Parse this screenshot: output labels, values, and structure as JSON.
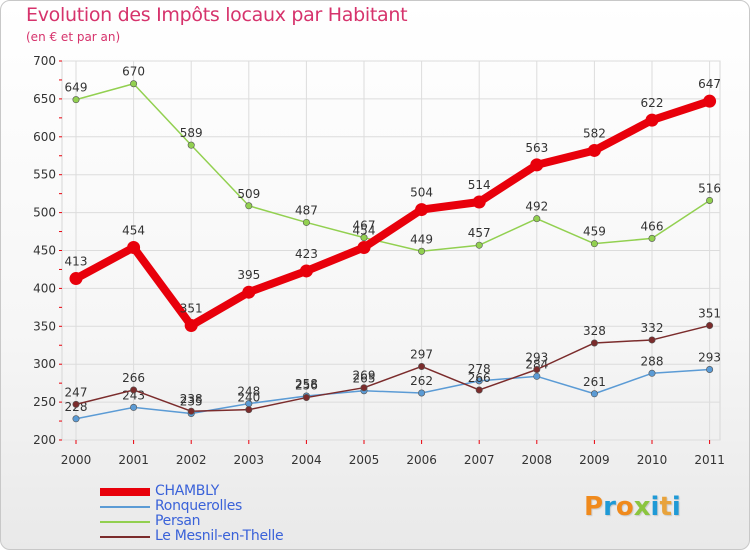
{
  "chart_data": {
    "type": "line",
    "title": "Evolution des Impôts locaux par Habitant",
    "subtitle": "(en € et par an)",
    "xlabel": "",
    "ylabel": "",
    "x": [
      "2000",
      "2001",
      "2002",
      "2003",
      "2004",
      "2005",
      "2006",
      "2007",
      "2008",
      "2009",
      "2010",
      "2011"
    ],
    "ylim": [
      200,
      700
    ],
    "yticks": [
      "200",
      "250",
      "300",
      "350",
      "400",
      "450",
      "500",
      "550",
      "600",
      "650",
      "700"
    ],
    "grid": true,
    "legend_position": "bottom-left",
    "series": [
      {
        "name": "CHAMBLY",
        "color": "#e8000b",
        "emphasis": "thick",
        "values": [
          413,
          454,
          351,
          395,
          423,
          454,
          504,
          514,
          563,
          582,
          622,
          647
        ]
      },
      {
        "name": "Ronquerolles",
        "color": "#5b9bd5",
        "emphasis": "normal",
        "values": [
          228,
          243,
          235,
          248,
          258,
          265,
          262,
          278,
          284,
          261,
          288,
          293
        ]
      },
      {
        "name": "Persan",
        "color": "#92d050",
        "emphasis": "normal",
        "values": [
          649,
          670,
          589,
          509,
          487,
          467,
          449,
          457,
          492,
          459,
          466,
          516
        ]
      },
      {
        "name": "Le Mesnil-en-Thelle",
        "color": "#7b2c2c",
        "emphasis": "normal",
        "values": [
          247,
          266,
          238,
          240,
          256,
          269,
          297,
          266,
          293,
          328,
          332,
          351
        ]
      }
    ]
  },
  "logo": {
    "letters": [
      "P",
      "r",
      "o",
      "x",
      "i",
      "t",
      "i"
    ],
    "colors": [
      "#f08a1c",
      "#1f9ad6",
      "#f08a1c",
      "#8bc53f",
      "#1f9ad6",
      "#e8a33c",
      "#1f9ad6"
    ]
  }
}
